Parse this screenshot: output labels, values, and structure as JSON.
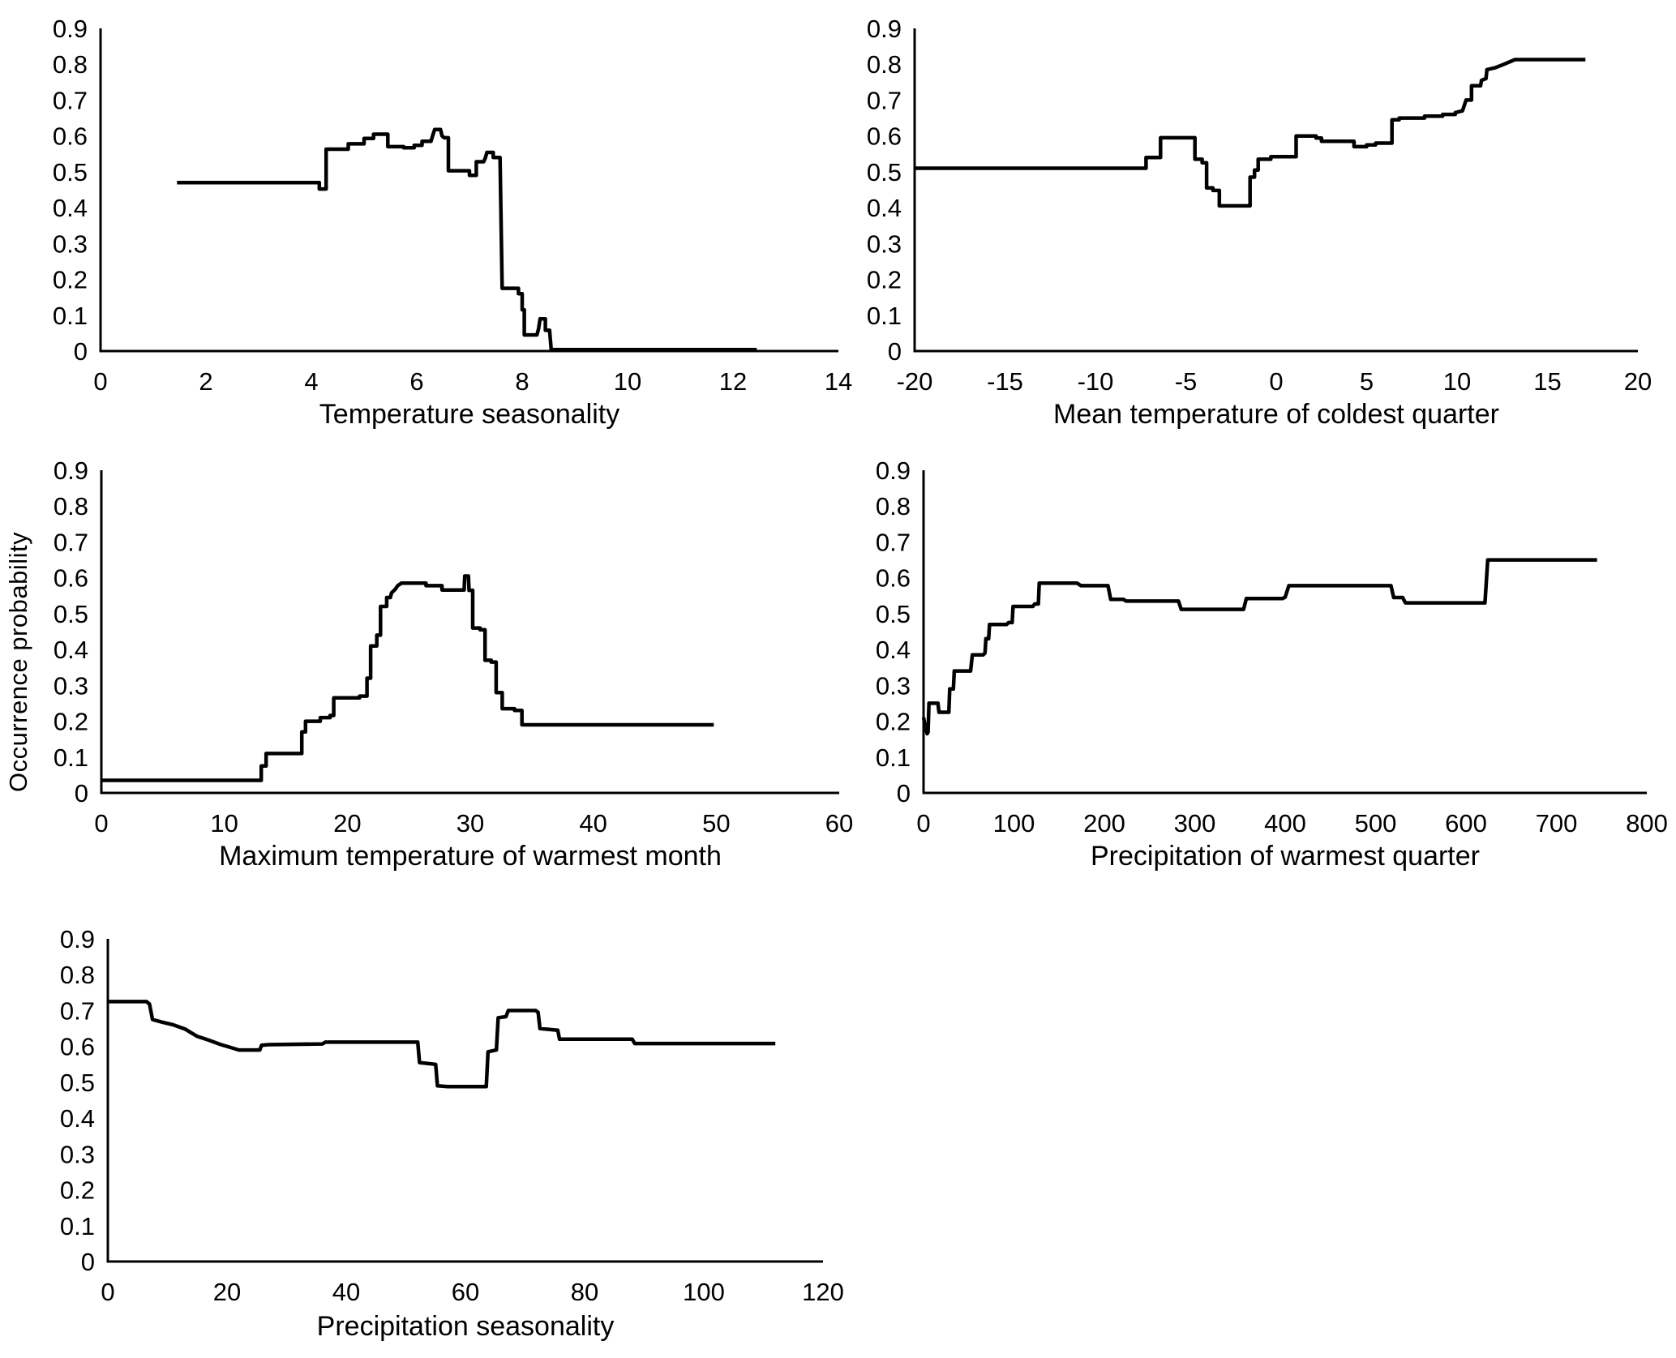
{
  "figure": {
    "shared_ylabel": "Occurrence probability",
    "line_color": "#000000",
    "text_color": "#000000",
    "background": "#ffffff"
  },
  "chart_data": [
    {
      "id": "temperature-seasonality",
      "type": "line",
      "title": "",
      "xlabel": "Temperature seasonality",
      "ylabel": "Occurrence probability",
      "xlim": [
        0,
        14
      ],
      "ylim": [
        0,
        0.9
      ],
      "xticks": [
        0,
        2,
        4,
        6,
        8,
        10,
        12,
        14
      ],
      "yticks": [
        0,
        0.1,
        0.2,
        0.3,
        0.4,
        0.5,
        0.6,
        0.7,
        0.8,
        0.9
      ],
      "grid": false,
      "legend": null,
      "points": [
        [
          1.45,
          0.47
        ],
        [
          4.15,
          0.47
        ],
        [
          4.15,
          0.452
        ],
        [
          4.28,
          0.452
        ],
        [
          4.28,
          0.563
        ],
        [
          4.7,
          0.563
        ],
        [
          4.7,
          0.578
        ],
        [
          5.0,
          0.578
        ],
        [
          5.0,
          0.593
        ],
        [
          5.18,
          0.593
        ],
        [
          5.18,
          0.605
        ],
        [
          5.45,
          0.605
        ],
        [
          5.45,
          0.57
        ],
        [
          5.75,
          0.57
        ],
        [
          5.75,
          0.567
        ],
        [
          5.95,
          0.567
        ],
        [
          5.95,
          0.574
        ],
        [
          6.1,
          0.574
        ],
        [
          6.1,
          0.585
        ],
        [
          6.27,
          0.585
        ],
        [
          6.3,
          0.6
        ],
        [
          6.34,
          0.618
        ],
        [
          6.45,
          0.618
        ],
        [
          6.48,
          0.6
        ],
        [
          6.52,
          0.595
        ],
        [
          6.6,
          0.595
        ],
        [
          6.6,
          0.503
        ],
        [
          7.0,
          0.503
        ],
        [
          7.0,
          0.49
        ],
        [
          7.13,
          0.49
        ],
        [
          7.13,
          0.528
        ],
        [
          7.27,
          0.528
        ],
        [
          7.3,
          0.538
        ],
        [
          7.33,
          0.554
        ],
        [
          7.45,
          0.554
        ],
        [
          7.45,
          0.54
        ],
        [
          7.58,
          0.54
        ],
        [
          7.62,
          0.175
        ],
        [
          7.93,
          0.175
        ],
        [
          7.93,
          0.16
        ],
        [
          8.0,
          0.16
        ],
        [
          8.0,
          0.115
        ],
        [
          8.04,
          0.115
        ],
        [
          8.04,
          0.045
        ],
        [
          8.28,
          0.045
        ],
        [
          8.31,
          0.062
        ],
        [
          8.34,
          0.09
        ],
        [
          8.44,
          0.09
        ],
        [
          8.44,
          0.058
        ],
        [
          8.52,
          0.058
        ],
        [
          8.55,
          0.004
        ],
        [
          12.45,
          0.004
        ]
      ]
    },
    {
      "id": "mean-temperature-coldest-quarter",
      "type": "line",
      "title": "",
      "xlabel": "Mean temperature of coldest quarter",
      "ylabel": "Occurrence probability",
      "xlim": [
        -20,
        20
      ],
      "ylim": [
        0,
        0.9
      ],
      "xticks": [
        -20,
        -15,
        -10,
        -5,
        0,
        5,
        10,
        15,
        20
      ],
      "yticks": [
        0,
        0.1,
        0.2,
        0.3,
        0.4,
        0.5,
        0.6,
        0.7,
        0.8,
        0.9
      ],
      "grid": false,
      "legend": null,
      "points": [
        [
          -20,
          0.51
        ],
        [
          -7.2,
          0.51
        ],
        [
          -7.2,
          0.54
        ],
        [
          -6.4,
          0.54
        ],
        [
          -6.4,
          0.595
        ],
        [
          -4.5,
          0.595
        ],
        [
          -4.5,
          0.535
        ],
        [
          -4.1,
          0.535
        ],
        [
          -4.1,
          0.525
        ],
        [
          -3.85,
          0.525
        ],
        [
          -3.85,
          0.455
        ],
        [
          -3.5,
          0.455
        ],
        [
          -3.5,
          0.448
        ],
        [
          -3.15,
          0.448
        ],
        [
          -3.15,
          0.405
        ],
        [
          -1.45,
          0.405
        ],
        [
          -1.45,
          0.485
        ],
        [
          -1.2,
          0.485
        ],
        [
          -1.2,
          0.505
        ],
        [
          -1.0,
          0.505
        ],
        [
          -1.0,
          0.535
        ],
        [
          -0.3,
          0.535
        ],
        [
          -0.3,
          0.542
        ],
        [
          1.1,
          0.542
        ],
        [
          1.1,
          0.6
        ],
        [
          2.2,
          0.6
        ],
        [
          2.2,
          0.594
        ],
        [
          2.5,
          0.594
        ],
        [
          2.5,
          0.585
        ],
        [
          4.3,
          0.585
        ],
        [
          4.3,
          0.57
        ],
        [
          5.0,
          0.57
        ],
        [
          5.0,
          0.575
        ],
        [
          5.5,
          0.575
        ],
        [
          5.5,
          0.58
        ],
        [
          6.4,
          0.58
        ],
        [
          6.4,
          0.645
        ],
        [
          6.8,
          0.645
        ],
        [
          6.8,
          0.65
        ],
        [
          8.2,
          0.65
        ],
        [
          8.2,
          0.655
        ],
        [
          9.2,
          0.655
        ],
        [
          9.2,
          0.66
        ],
        [
          9.9,
          0.66
        ],
        [
          9.9,
          0.665
        ],
        [
          10.3,
          0.67
        ],
        [
          10.5,
          0.7
        ],
        [
          10.8,
          0.7
        ],
        [
          10.8,
          0.74
        ],
        [
          11.3,
          0.74
        ],
        [
          11.35,
          0.755
        ],
        [
          11.6,
          0.76
        ],
        [
          11.65,
          0.785
        ],
        [
          12.1,
          0.79
        ],
        [
          12.6,
          0.8
        ],
        [
          13.2,
          0.813
        ],
        [
          17.1,
          0.813
        ]
      ]
    },
    {
      "id": "maximum-temperature-warmest-month",
      "type": "line",
      "title": "",
      "xlabel": "Maximum temperature of warmest month",
      "ylabel": "Occurrence probability",
      "xlim": [
        0,
        60
      ],
      "ylim": [
        0,
        0.9
      ],
      "xticks": [
        0,
        10,
        20,
        30,
        40,
        50,
        60
      ],
      "yticks": [
        0,
        0.1,
        0.2,
        0.3,
        0.4,
        0.5,
        0.6,
        0.7,
        0.8,
        0.9
      ],
      "grid": false,
      "legend": null,
      "points": [
        [
          0,
          0.035
        ],
        [
          13.0,
          0.035
        ],
        [
          13.0,
          0.075
        ],
        [
          13.4,
          0.075
        ],
        [
          13.4,
          0.11
        ],
        [
          16.3,
          0.11
        ],
        [
          16.3,
          0.17
        ],
        [
          16.6,
          0.17
        ],
        [
          16.6,
          0.2
        ],
        [
          17.8,
          0.2
        ],
        [
          17.8,
          0.21
        ],
        [
          18.6,
          0.21
        ],
        [
          18.6,
          0.216
        ],
        [
          18.9,
          0.216
        ],
        [
          18.9,
          0.265
        ],
        [
          21.0,
          0.265
        ],
        [
          21.0,
          0.27
        ],
        [
          21.6,
          0.27
        ],
        [
          21.6,
          0.32
        ],
        [
          21.9,
          0.32
        ],
        [
          21.9,
          0.41
        ],
        [
          22.4,
          0.41
        ],
        [
          22.4,
          0.44
        ],
        [
          22.7,
          0.44
        ],
        [
          22.7,
          0.52
        ],
        [
          23.2,
          0.52
        ],
        [
          23.2,
          0.545
        ],
        [
          23.5,
          0.545
        ],
        [
          23.6,
          0.558
        ],
        [
          23.9,
          0.568
        ],
        [
          24.1,
          0.578
        ],
        [
          24.4,
          0.585
        ],
        [
          26.4,
          0.585
        ],
        [
          26.4,
          0.578
        ],
        [
          27.7,
          0.578
        ],
        [
          27.7,
          0.566
        ],
        [
          29.5,
          0.566
        ],
        [
          29.55,
          0.605
        ],
        [
          29.85,
          0.605
        ],
        [
          29.9,
          0.565
        ],
        [
          30.2,
          0.565
        ],
        [
          30.2,
          0.46
        ],
        [
          30.8,
          0.46
        ],
        [
          30.8,
          0.455
        ],
        [
          31.2,
          0.455
        ],
        [
          31.2,
          0.37
        ],
        [
          31.7,
          0.37
        ],
        [
          31.7,
          0.365
        ],
        [
          32.1,
          0.365
        ],
        [
          32.1,
          0.28
        ],
        [
          32.6,
          0.28
        ],
        [
          32.6,
          0.235
        ],
        [
          33.6,
          0.235
        ],
        [
          33.6,
          0.23
        ],
        [
          34.2,
          0.23
        ],
        [
          34.2,
          0.19
        ],
        [
          49.8,
          0.19
        ]
      ]
    },
    {
      "id": "precipitation-warmest-quarter",
      "type": "line",
      "title": "",
      "xlabel": "Precipitation of warmest quarter",
      "ylabel": "Occurrence probability",
      "xlim": [
        0,
        800
      ],
      "ylim": [
        0,
        0.9
      ],
      "xticks": [
        0,
        100,
        200,
        300,
        400,
        500,
        600,
        700,
        800
      ],
      "yticks": [
        0,
        0.1,
        0.2,
        0.3,
        0.4,
        0.5,
        0.6,
        0.7,
        0.8,
        0.9
      ],
      "grid": false,
      "legend": null,
      "points": [
        [
          0,
          0.21
        ],
        [
          2,
          0.185
        ],
        [
          4,
          0.165
        ],
        [
          5,
          0.17
        ],
        [
          6,
          0.25
        ],
        [
          15,
          0.25
        ],
        [
          16,
          0.25
        ],
        [
          17,
          0.225
        ],
        [
          28,
          0.225
        ],
        [
          29,
          0.29
        ],
        [
          33,
          0.29
        ],
        [
          34,
          0.34
        ],
        [
          52,
          0.34
        ],
        [
          54,
          0.385
        ],
        [
          66,
          0.385
        ],
        [
          68,
          0.39
        ],
        [
          69,
          0.43
        ],
        [
          72,
          0.43
        ],
        [
          73,
          0.47
        ],
        [
          92,
          0.47
        ],
        [
          94,
          0.475
        ],
        [
          98,
          0.475
        ],
        [
          99,
          0.52
        ],
        [
          121,
          0.52
        ],
        [
          123,
          0.527
        ],
        [
          127,
          0.527
        ],
        [
          128,
          0.585
        ],
        [
          170,
          0.585
        ],
        [
          174,
          0.578
        ],
        [
          204,
          0.578
        ],
        [
          207,
          0.54
        ],
        [
          221,
          0.54
        ],
        [
          224,
          0.535
        ],
        [
          282,
          0.535
        ],
        [
          285,
          0.512
        ],
        [
          354,
          0.512
        ],
        [
          357,
          0.542
        ],
        [
          397,
          0.542
        ],
        [
          400,
          0.546
        ],
        [
          404,
          0.578
        ],
        [
          517,
          0.578
        ],
        [
          520,
          0.545
        ],
        [
          530,
          0.545
        ],
        [
          533,
          0.53
        ],
        [
          621,
          0.53
        ],
        [
          624,
          0.65
        ],
        [
          745,
          0.65
        ]
      ]
    },
    {
      "id": "precipitation-seasonality",
      "type": "line",
      "title": "",
      "xlabel": "Precipitation seasonality",
      "ylabel": "Occurrence probability",
      "xlim": [
        0,
        120
      ],
      "ylim": [
        0,
        0.9
      ],
      "xticks": [
        0,
        20,
        40,
        60,
        80,
        100,
        120
      ],
      "yticks": [
        0,
        0.1,
        0.2,
        0.3,
        0.4,
        0.5,
        0.6,
        0.7,
        0.8,
        0.9
      ],
      "grid": false,
      "legend": null,
      "points": [
        [
          0,
          0.725
        ],
        [
          6.5,
          0.725
        ],
        [
          7,
          0.718
        ],
        [
          7.5,
          0.675
        ],
        [
          9,
          0.668
        ],
        [
          11,
          0.66
        ],
        [
          13,
          0.648
        ],
        [
          14,
          0.638
        ],
        [
          15,
          0.628
        ],
        [
          17,
          0.617
        ],
        [
          19,
          0.605
        ],
        [
          21,
          0.595
        ],
        [
          22,
          0.59
        ],
        [
          25.5,
          0.59
        ],
        [
          25.8,
          0.603
        ],
        [
          27,
          0.605
        ],
        [
          36,
          0.607
        ],
        [
          36.5,
          0.612
        ],
        [
          52,
          0.612
        ],
        [
          52.3,
          0.555
        ],
        [
          55,
          0.55
        ],
        [
          55.3,
          0.49
        ],
        [
          57,
          0.488
        ],
        [
          63.5,
          0.488
        ],
        [
          63.8,
          0.585
        ],
        [
          65.2,
          0.59
        ],
        [
          65.5,
          0.68
        ],
        [
          66.8,
          0.683
        ],
        [
          67.2,
          0.7
        ],
        [
          71.8,
          0.7
        ],
        [
          72.2,
          0.695
        ],
        [
          72.5,
          0.65
        ],
        [
          75.5,
          0.645
        ],
        [
          75.8,
          0.62
        ],
        [
          88,
          0.62
        ],
        [
          88.4,
          0.608
        ],
        [
          112,
          0.608
        ]
      ]
    }
  ]
}
